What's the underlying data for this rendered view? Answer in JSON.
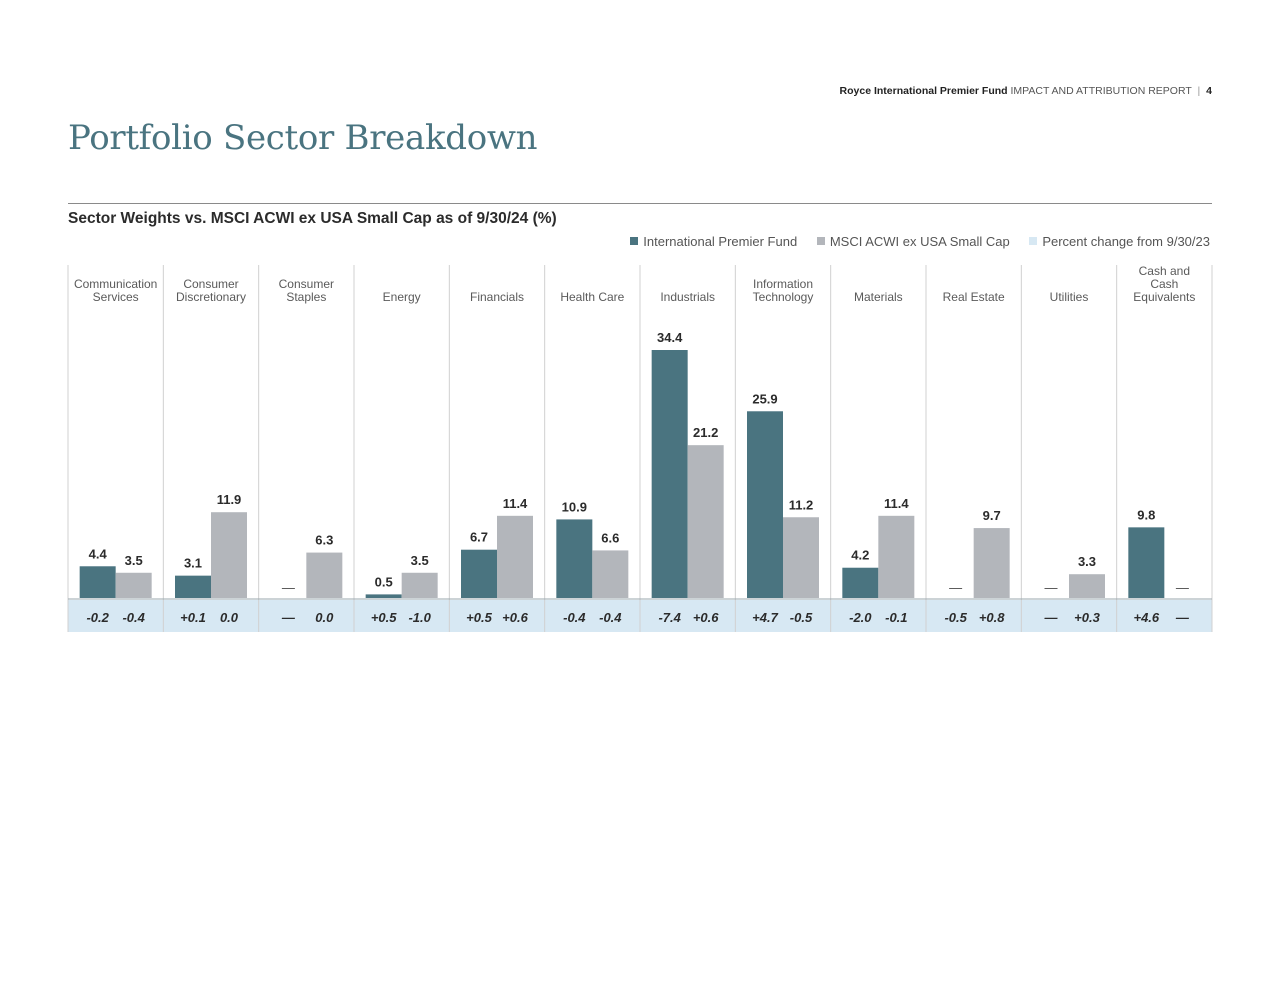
{
  "header": {
    "fund_name": "Royce International Premier Fund",
    "report_title": "IMPACT AND ATTRIBUTION REPORT",
    "separator": "|",
    "page_number": "4"
  },
  "page_title": "Portfolio Sector Breakdown",
  "colors": {
    "fund": "#4a7480",
    "benchmark": "#b3b6bb",
    "change_band": "#d7e8f3",
    "title": "#4a7480"
  },
  "chart_data": {
    "type": "bar",
    "title": "Sector Weights vs. MSCI ACWI ex USA Small Cap as of 9/30/24 (%)",
    "legend_position": "top-right",
    "legend": [
      {
        "name": "International Premier Fund",
        "color": "#4a7480"
      },
      {
        "name": "MSCI ACWI ex USA Small Cap",
        "color": "#b3b6bb"
      },
      {
        "name": "Percent change from 9/30/23",
        "color": "#d7e8f3"
      }
    ],
    "categories": [
      [
        "Communication",
        "Services"
      ],
      [
        "Consumer",
        "Discretionary"
      ],
      [
        "Consumer",
        "Staples"
      ],
      [
        "Energy"
      ],
      [
        "Financials"
      ],
      [
        "Health Care"
      ],
      [
        "Industrials"
      ],
      [
        "Information",
        "Technology"
      ],
      [
        "Materials"
      ],
      [
        "Real Estate"
      ],
      [
        "Utilities"
      ],
      [
        "Cash and",
        "Cash",
        "Equivalents"
      ]
    ],
    "series": [
      {
        "name": "International Premier Fund",
        "values": [
          4.4,
          3.1,
          null,
          0.5,
          6.7,
          10.9,
          34.4,
          25.9,
          4.2,
          null,
          null,
          9.8
        ],
        "labels": [
          "4.4",
          "3.1",
          "—",
          "0.5",
          "6.7",
          "10.9",
          "34.4",
          "25.9",
          "4.2",
          "—",
          "—",
          "9.8"
        ],
        "change_labels": [
          "-0.2",
          "+0.1",
          "—",
          "+0.5",
          "+0.5",
          "-0.4",
          "-7.4",
          "+4.7",
          "-2.0",
          "-0.5",
          "—",
          "+4.6"
        ]
      },
      {
        "name": "MSCI ACWI ex USA Small Cap",
        "values": [
          3.5,
          11.9,
          6.3,
          3.5,
          11.4,
          6.6,
          21.2,
          11.2,
          11.4,
          9.7,
          3.3,
          null
        ],
        "labels": [
          "3.5",
          "11.9",
          "6.3",
          "3.5",
          "11.4",
          "6.6",
          "21.2",
          "11.2",
          "11.4",
          "9.7",
          "3.3",
          "—"
        ],
        "change_labels": [
          "-0.4",
          "0.0",
          "0.0",
          "-1.0",
          "+0.6",
          "-0.4",
          "+0.6",
          "-0.5",
          "-0.1",
          "+0.8",
          "+0.3",
          "—"
        ]
      }
    ],
    "ylim": [
      0,
      34.4
    ]
  }
}
